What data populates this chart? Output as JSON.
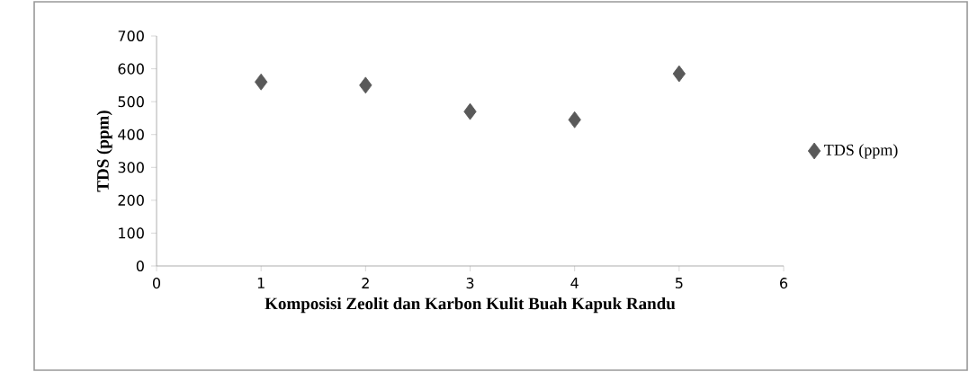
{
  "chart_data": {
    "type": "scatter",
    "xlabel": "Komposisi Zeolit dan Karbon Kulit Buah Kapuk Randu",
    "ylabel": "TDS (ppm)",
    "x": [
      1,
      2,
      3,
      4,
      5
    ],
    "series": [
      {
        "name": "TDS (ppm)",
        "color": "#595959",
        "values": [
          560,
          550,
          470,
          445,
          585
        ]
      }
    ],
    "xlim": [
      0,
      6
    ],
    "xticks": [
      0,
      1,
      2,
      3,
      4,
      5,
      6
    ],
    "ylim": [
      0,
      700
    ],
    "yticks": [
      0,
      100,
      200,
      300,
      400,
      500,
      600,
      700
    ],
    "marker": "diamond",
    "grid": false,
    "legend": "right"
  }
}
